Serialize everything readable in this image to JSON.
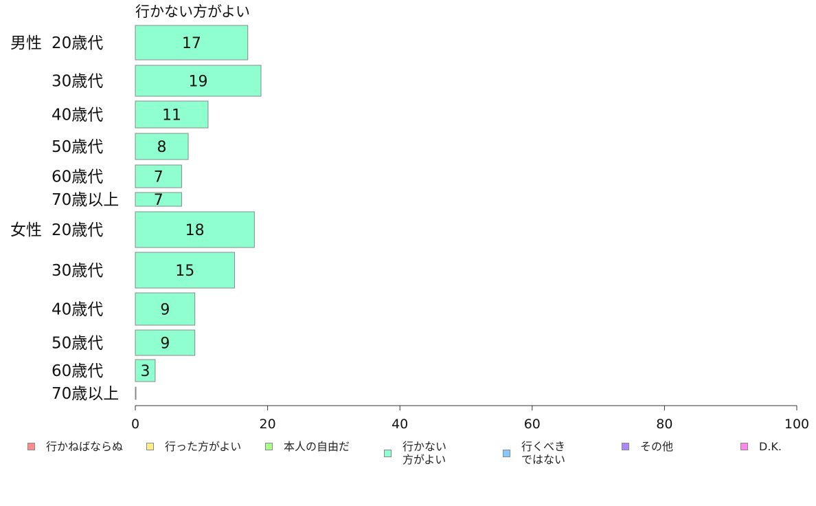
{
  "chart_data": {
    "type": "bar",
    "orientation": "horizontal",
    "title": "行かない方がよい",
    "xlim": [
      0,
      100
    ],
    "xticks": [
      0,
      20,
      40,
      60,
      80,
      100
    ],
    "groups": [
      {
        "label": "男性",
        "rows": [
          {
            "category": "20歳代",
            "value": 17
          },
          {
            "category": "30歳代",
            "value": 19
          },
          {
            "category": "40歳代",
            "value": 11
          },
          {
            "category": "50歳代",
            "value": 8
          },
          {
            "category": "60歳代",
            "value": 7
          },
          {
            "category": "70歳以上",
            "value": 7
          }
        ]
      },
      {
        "label": "女性",
        "rows": [
          {
            "category": "20歳代",
            "value": 18
          },
          {
            "category": "30歳代",
            "value": 15
          },
          {
            "category": "40歳代",
            "value": 9
          },
          {
            "category": "50歳代",
            "value": 9
          },
          {
            "category": "60歳代",
            "value": 3
          },
          {
            "category": "70歳以上",
            "value": 0
          }
        ]
      }
    ],
    "bar_color": "#8fffd0",
    "bar_border": "#888888",
    "legend": [
      {
        "label": "行かねばならぬ",
        "color": "#ff8c8c"
      },
      {
        "label": "行った方がよい",
        "color": "#ffee88"
      },
      {
        "label": "本人の自由だ",
        "color": "#aaff88"
      },
      {
        "label": "行かない\n方がよい",
        "color": "#8fffd0"
      },
      {
        "label": "行くべき\nではない",
        "color": "#88c8ff"
      },
      {
        "label": "その他",
        "color": "#aa88ff"
      },
      {
        "label": "D.K.",
        "color": "#ff88ee"
      }
    ]
  }
}
